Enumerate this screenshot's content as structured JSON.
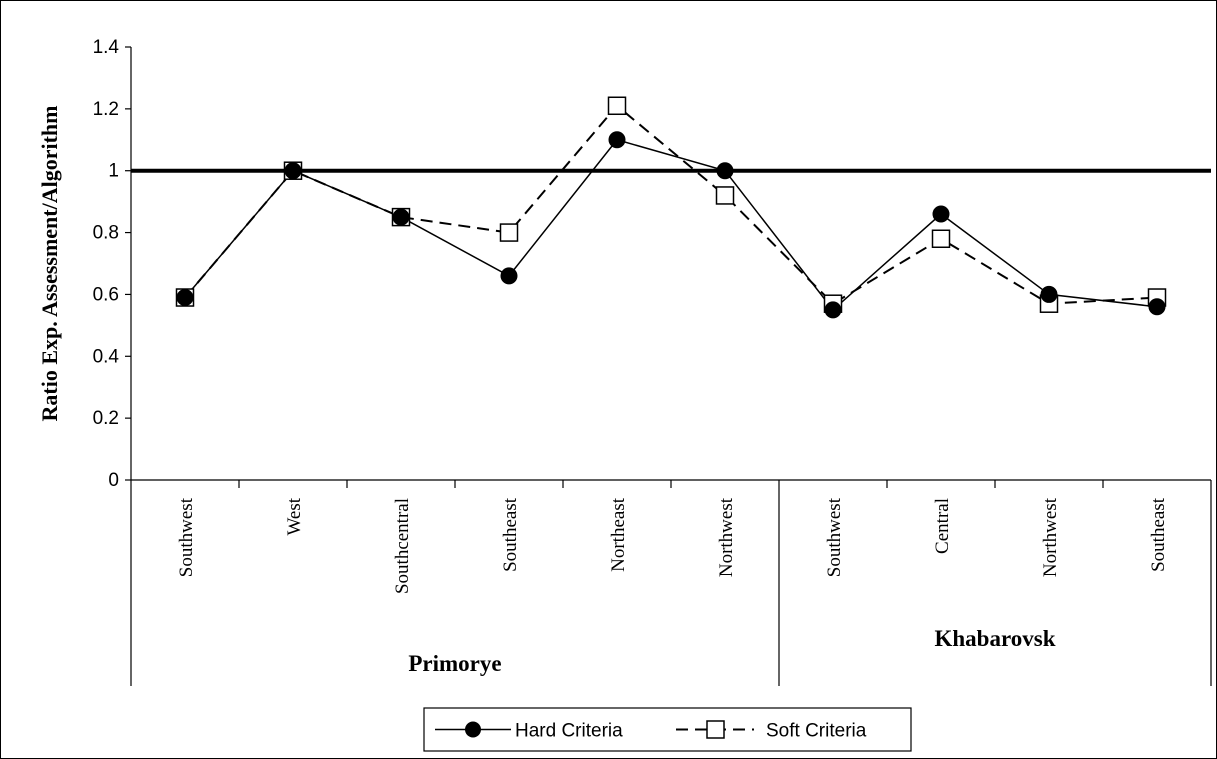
{
  "chart_data": {
    "type": "line",
    "ylabel": "Ratio Exp. Assessment/Algorithm",
    "ylim": [
      0,
      1.4
    ],
    "yticks": [
      0,
      0.2,
      0.4,
      0.6,
      0.8,
      1,
      1.2,
      1.4
    ],
    "ytick_labels": [
      "0",
      "0.2",
      "0.4",
      "0.6",
      "0.8",
      "1",
      "1.2",
      "1.4"
    ],
    "categories": [
      "Southwest",
      "West",
      "Southcentral",
      "Southeast",
      "Northeast",
      "Northwest",
      "Southwest",
      "Central",
      "Northwest",
      "Southeast"
    ],
    "groups": [
      {
        "label": "Primorye",
        "categories": [
          "Southwest",
          "West",
          "Southcentral",
          "Southeast",
          "Northeast",
          "Northwest"
        ]
      },
      {
        "label": "Khabarovsk",
        "categories": [
          "Southwest",
          "Central",
          "Northwest",
          "Southeast"
        ]
      }
    ],
    "reference_line": 1,
    "series": [
      {
        "name": "Hard Criteria",
        "style": "solid",
        "marker": "filled-circle",
        "color": "#000000",
        "values": [
          0.59,
          1.0,
          0.85,
          0.66,
          1.1,
          1.0,
          0.55,
          0.86,
          0.6,
          0.56
        ]
      },
      {
        "name": "Soft Criteria",
        "style": "dashed",
        "marker": "open-square",
        "color": "#000000",
        "values": [
          0.59,
          1.0,
          0.85,
          0.8,
          1.21,
          0.92,
          0.57,
          0.78,
          0.57,
          0.59
        ]
      }
    ],
    "grid": false,
    "legend_position": "bottom-center"
  }
}
